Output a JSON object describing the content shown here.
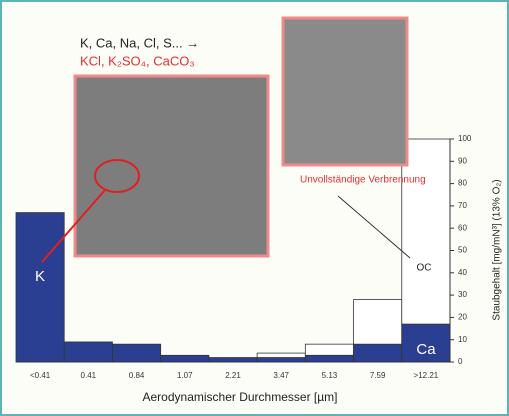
{
  "chart_data": {
    "type": "stacked-bar",
    "categories": [
      "<0.41",
      "0.41",
      "0.84",
      "1.07",
      "2.21",
      "3.47",
      "5.13",
      "7.59",
      ">12.21"
    ],
    "series": [
      {
        "color": "#2b3f92",
        "values": [
          67,
          9,
          8,
          3,
          2,
          2,
          3,
          8,
          17
        ]
      },
      {
        "color": "#ffffff",
        "values": [
          0,
          0,
          0,
          0,
          0,
          2,
          5,
          20,
          83
        ]
      }
    ],
    "ylim": [
      0,
      100
    ],
    "yticks": [
      0,
      10,
      20,
      30,
      40,
      50,
      60,
      70,
      80,
      90,
      100
    ],
    "xlabel": "Aerodynamischer Durchmesser [µm]",
    "ylabel": "Staubgehalt [mg/mN³] (13% O₂)",
    "annotations": [
      "K, Ca, Na, Cl, S... →",
      "KCl, K₂SO₄, CaCO₃",
      "Unvollständige Verbrennung",
      "K",
      "Ca",
      "OC"
    ]
  }
}
